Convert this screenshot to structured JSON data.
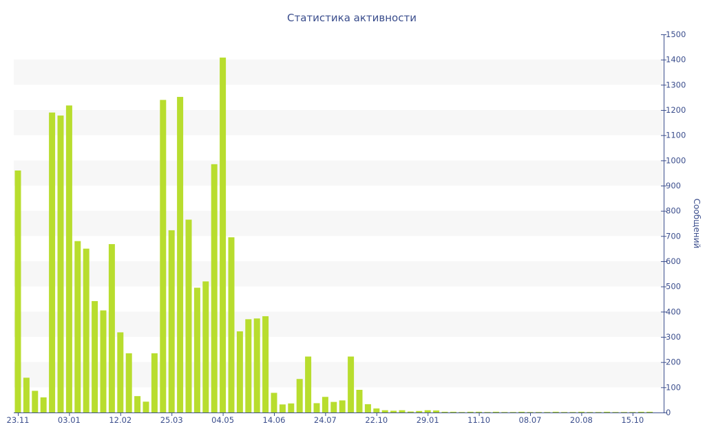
{
  "chart_data": {
    "type": "bar",
    "title": "Статистика активности",
    "ylabel": "Сообщений",
    "xlabel": "",
    "ylim": [
      0,
      1500
    ],
    "y_ticks": [
      0,
      100,
      200,
      300,
      400,
      500,
      600,
      700,
      800,
      900,
      1000,
      1100,
      1200,
      1300,
      1400,
      1500
    ],
    "y_axis_side": "right",
    "grid": "alternating horizontal bands",
    "x_tick_labels": [
      {
        "index": 0,
        "label": "23.11"
      },
      {
        "index": 6,
        "label": "03.01"
      },
      {
        "index": 12,
        "label": "12.02"
      },
      {
        "index": 18,
        "label": "25.03"
      },
      {
        "index": 24,
        "label": "04.05"
      },
      {
        "index": 30,
        "label": "14.06"
      },
      {
        "index": 36,
        "label": "24.07"
      },
      {
        "index": 42,
        "label": "22.10"
      },
      {
        "index": 48,
        "label": "29.01"
      },
      {
        "index": 54,
        "label": "11.10"
      },
      {
        "index": 60,
        "label": "08.07"
      },
      {
        "index": 66,
        "label": "20.08"
      },
      {
        "index": 72,
        "label": "15.10"
      }
    ],
    "values": [
      960,
      138,
      86,
      60,
      1190,
      1178,
      1218,
      680,
      650,
      442,
      405,
      668,
      318,
      235,
      65,
      43,
      235,
      1240,
      723,
      1252,
      765,
      495,
      520,
      985,
      1408,
      695,
      322,
      370,
      373,
      382,
      78,
      32,
      36,
      133,
      222,
      37,
      62,
      42,
      48,
      222,
      90,
      33,
      16,
      9,
      7,
      9,
      4,
      6,
      9,
      8,
      3,
      3,
      2,
      3,
      3,
      2,
      3,
      2,
      2,
      3,
      2,
      2,
      2,
      3,
      2,
      2,
      3,
      2,
      2,
      3,
      2,
      2,
      2,
      3,
      3
    ],
    "colors": {
      "bar": "#b8dd2e",
      "text": "#3a4d8c",
      "axis": "#3a4d8c",
      "band": "#f7f7f7"
    }
  }
}
